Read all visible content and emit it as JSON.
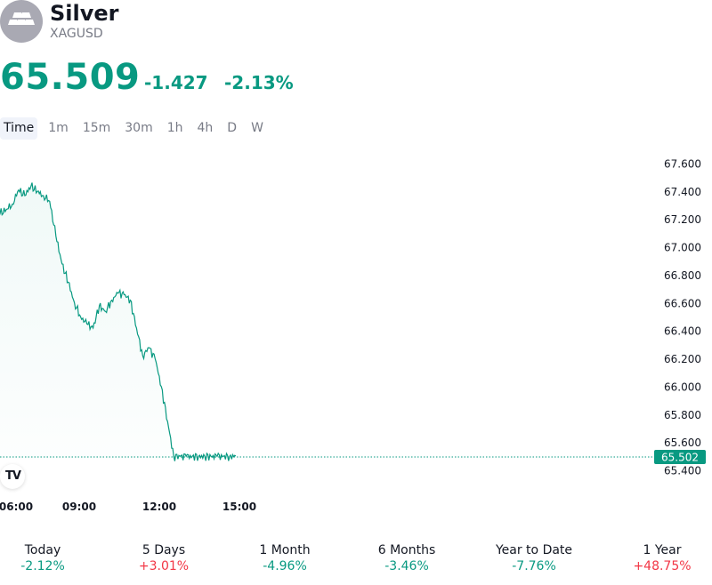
{
  "header": {
    "title": "Silver",
    "symbol": "XAGUSD",
    "logo_icon": "silver-bars-icon"
  },
  "quote": {
    "price": "65.509",
    "change": "-1.427",
    "change_percent": "-2.13%",
    "color": "#089981"
  },
  "intervals": [
    {
      "label": "Time",
      "active": true
    },
    {
      "label": "1m",
      "active": false
    },
    {
      "label": "15m",
      "active": false
    },
    {
      "label": "30m",
      "active": false
    },
    {
      "label": "1h",
      "active": false
    },
    {
      "label": "4h",
      "active": false
    },
    {
      "label": "D",
      "active": false
    },
    {
      "label": "W",
      "active": false
    }
  ],
  "chart_data": {
    "type": "area",
    "y_ticks": [
      "67.600",
      "67.400",
      "67.200",
      "67.000",
      "66.800",
      "66.600",
      "66.400",
      "66.200",
      "66.000",
      "65.800",
      "65.600",
      "65.400"
    ],
    "x_ticks": [
      "06:00",
      "09:00",
      "12:00",
      "15:00"
    ],
    "ylim": [
      65.4,
      67.6
    ],
    "last_price_label": "65.502",
    "last_price": 65.502,
    "line_color": "#089981",
    "grid": false,
    "series": [
      {
        "x": [
          "05:30",
          "05:45",
          "06:00",
          "06:15",
          "06:30",
          "06:45",
          "07:00",
          "07:15",
          "07:30",
          "07:45",
          "08:00",
          "08:15",
          "08:30",
          "08:45",
          "09:00",
          "09:15",
          "09:30",
          "09:45",
          "10:00",
          "10:15",
          "10:30",
          "10:45",
          "11:00",
          "11:15",
          "11:30",
          "11:45",
          "12:00",
          "12:15",
          "12:30",
          "12:45",
          "13:00",
          "13:15",
          "13:30",
          "13:45",
          "14:00",
          "14:15",
          "14:30",
          "14:45",
          "15:00",
          "15:15",
          "15:30"
        ],
        "y": [
          67.17,
          67.22,
          67.24,
          67.27,
          67.31,
          67.41,
          67.37,
          67.44,
          67.4,
          67.37,
          67.33,
          67.08,
          66.88,
          66.75,
          66.6,
          66.5,
          66.45,
          66.42,
          66.58,
          66.54,
          66.62,
          66.67,
          66.66,
          66.62,
          66.42,
          66.22,
          66.28,
          66.2,
          66.0,
          65.75,
          65.5,
          65.5,
          65.5,
          65.5,
          65.5,
          65.5,
          65.5,
          65.5,
          65.5,
          65.5,
          65.502
        ]
      }
    ]
  },
  "performance": [
    {
      "label": "Today",
      "value": "-2.12%",
      "trend": "neg"
    },
    {
      "label": "5 Days",
      "value": "+3.01%",
      "trend": "pos"
    },
    {
      "label": "1 Month",
      "value": "-4.96%",
      "trend": "neg"
    },
    {
      "label": "6 Months",
      "value": "-3.46%",
      "trend": "neg"
    },
    {
      "label": "Year to Date",
      "value": "-7.76%",
      "trend": "neg"
    },
    {
      "label": "1 Year",
      "value": "+48.75%",
      "trend": "pos"
    }
  ],
  "tv_logo_text": "TV"
}
